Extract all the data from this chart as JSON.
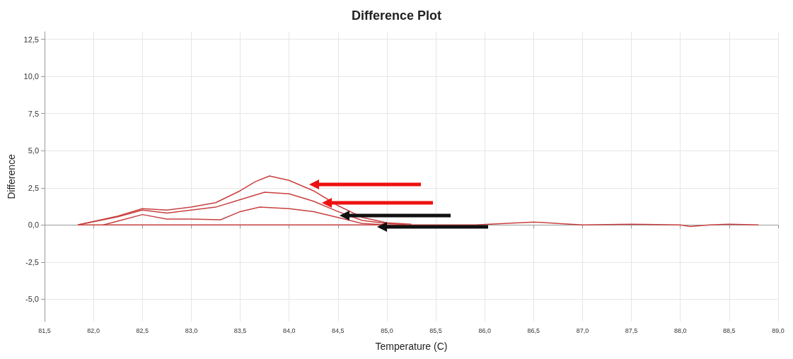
{
  "chart_data": {
    "type": "line",
    "title": "Difference Plot",
    "xlabel": "Temperature (C)",
    "ylabel": "Difference",
    "xlim": [
      81.5,
      89.0
    ],
    "xticks": [
      {
        "value": 81.5,
        "label": "81,5"
      },
      {
        "value": 82,
        "label": "82,0"
      },
      {
        "value": 82.5,
        "label": "82,5"
      },
      {
        "value": 83,
        "label": "83,0"
      },
      {
        "value": 83.5,
        "label": "83,5"
      },
      {
        "value": 84,
        "label": "84,0"
      },
      {
        "value": 84.5,
        "label": "84,5"
      },
      {
        "value": 85,
        "label": "85,0"
      },
      {
        "value": 85.5,
        "label": "85,5"
      },
      {
        "value": 86,
        "label": "86,0"
      },
      {
        "value": 86.5,
        "label": "86,5"
      },
      {
        "value": 87,
        "label": "87,0"
      },
      {
        "value": 87.5,
        "label": "87,5"
      },
      {
        "value": 88,
        "label": "88,0"
      },
      {
        "value": 88.5,
        "label": "88,5"
      },
      {
        "value": 89,
        "label": "89,0"
      }
    ],
    "ylim": [
      -6.5,
      13
    ],
    "yticks": [
      {
        "value": -5,
        "label": "-5,0"
      },
      {
        "value": -2.5,
        "label": "-2,5"
      },
      {
        "value": 0,
        "label": "0,0"
      },
      {
        "value": 2.5,
        "label": "2,5"
      },
      {
        "value": 5,
        "label": "5,0"
      },
      {
        "value": 7.5,
        "label": "7,5"
      },
      {
        "value": 10,
        "label": "10,0"
      },
      {
        "value": 12.5,
        "label": "12,5"
      }
    ],
    "grid": true,
    "marker": "none",
    "line_style": "solid",
    "series": [
      {
        "color": "#c84040",
        "x": [
          81.84,
          82.25,
          82.5,
          82.75,
          83.0,
          83.25,
          83.5,
          83.65,
          83.8,
          84.0,
          84.25,
          84.5,
          84.75,
          85.0,
          85.25
        ],
        "values": [
          0,
          0.6,
          1.1,
          1.0,
          1.2,
          1.5,
          2.3,
          2.9,
          3.3,
          3.0,
          2.3,
          1.3,
          0.5,
          0.15,
          0.05
        ]
      },
      {
        "color": "#c84040",
        "x": [
          81.84,
          82.25,
          82.5,
          82.75,
          83.0,
          83.25,
          83.5,
          83.75,
          84.0,
          84.25,
          84.5,
          84.75,
          85.0,
          85.2
        ],
        "values": [
          0,
          0.55,
          1.0,
          0.8,
          1.0,
          1.2,
          1.7,
          2.2,
          2.1,
          1.6,
          0.9,
          0.3,
          0.1,
          0.03
        ]
      },
      {
        "color": "#c84040",
        "x": [
          82.1,
          82.3,
          82.5,
          82.75,
          83.0,
          83.3,
          83.5,
          83.7,
          84.0,
          84.25,
          84.5,
          84.75,
          85.0
        ],
        "values": [
          0,
          0.35,
          0.7,
          0.4,
          0.4,
          0.35,
          0.9,
          1.2,
          1.1,
          0.9,
          0.5,
          0.1,
          0
        ]
      },
      {
        "color": "#c84040",
        "x": [
          81.84,
          85.9,
          86.2,
          86.5,
          86.75,
          87.0,
          87.5,
          88.0,
          88.1,
          88.3,
          88.5,
          88.8
        ],
        "values": [
          0,
          0,
          0.1,
          0.2,
          0.1,
          0.0,
          0.05,
          0.0,
          -0.1,
          0.0,
          0.05,
          0.0
        ]
      }
    ]
  }
}
